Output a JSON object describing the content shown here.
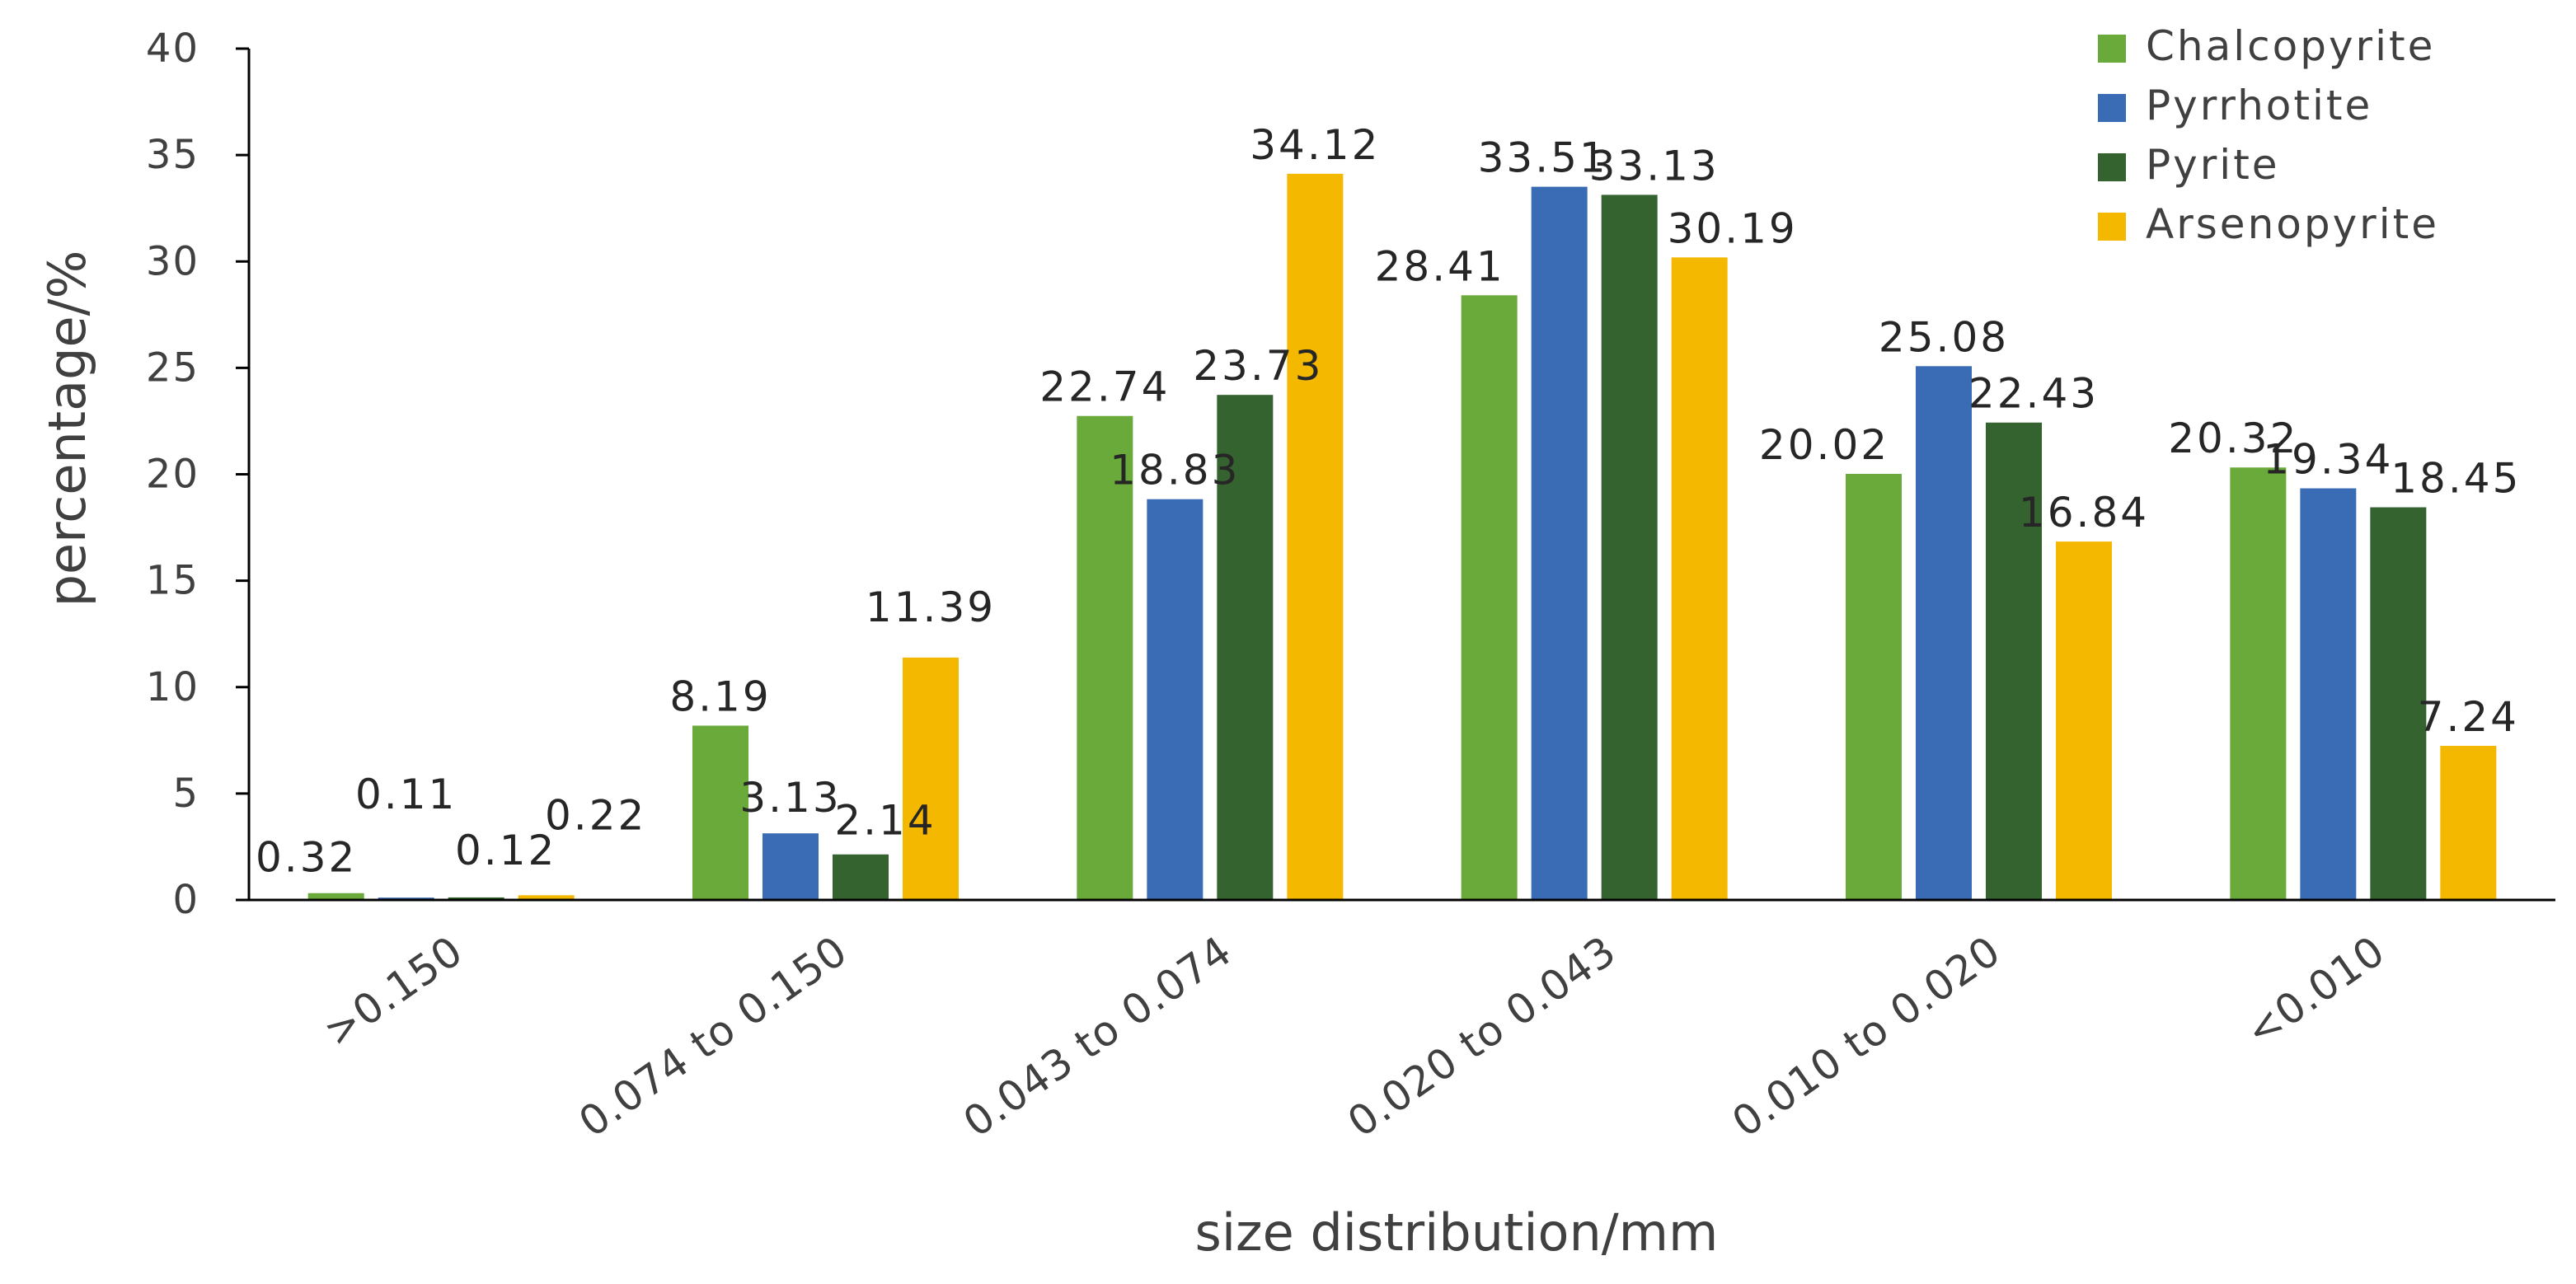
{
  "chart_data": {
    "type": "bar",
    "title": "",
    "xlabel": "size distribution/mm",
    "ylabel": "percentage/%",
    "ylim": [
      0,
      40
    ],
    "yticks": [
      "0",
      "5",
      "10",
      "15",
      "20",
      "25",
      "30",
      "35",
      "40"
    ],
    "grid": false,
    "legend_position": "top-right",
    "categories": [
      ">0.150",
      "0.074 to 0.150",
      "0.043 to 0.074",
      "0.020 to 0.043",
      "0.010 to 0.020",
      "<0.010"
    ],
    "series": [
      {
        "name": "Chalcopyrite",
        "color": "#6aaa3a",
        "values": [
          0.32,
          8.19,
          22.74,
          28.41,
          20.02,
          20.32
        ],
        "labels": [
          "0.32",
          "8.19",
          "22.74",
          "28.41",
          "20.02",
          "20.32"
        ]
      },
      {
        "name": "Pyrrhotite",
        "color": "#3a6cb5",
        "values": [
          0.11,
          3.13,
          18.83,
          33.51,
          25.08,
          19.34
        ],
        "labels": [
          "0.11",
          "3.13",
          "18.83",
          "33.51",
          "25.08",
          "19.34"
        ]
      },
      {
        "name": "Pyrite",
        "color": "#356330",
        "values": [
          0.12,
          2.14,
          23.73,
          33.13,
          22.43,
          18.45
        ],
        "labels": [
          "0.12",
          "2.14",
          "23.73",
          "33.13",
          "22.43",
          "18.45"
        ]
      },
      {
        "name": "Arsenopyrite",
        "color": "#f5b800",
        "values": [
          0.22,
          11.39,
          34.12,
          30.19,
          16.84,
          7.24
        ],
        "labels": [
          "0.22",
          "11.39",
          "34.12",
          "30.19",
          "16.84",
          "7.24"
        ]
      }
    ]
  }
}
